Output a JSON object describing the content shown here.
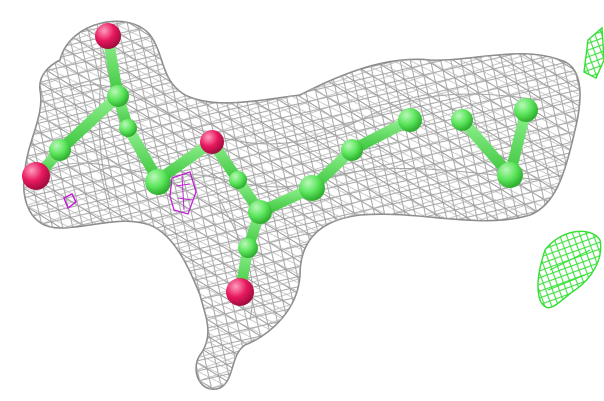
{
  "scene": {
    "subject": "ligand-electron-density-map",
    "palette": {
      "background": "#ffffff",
      "density_mesh": "#9a9a9a",
      "carbon": "#5ce65c",
      "carbon_highlight": "#b9f7b9",
      "oxygen": "#e8185f",
      "oxygen_highlight": "#ff9dbd",
      "difference_density_negative": "#c21fd6",
      "difference_density_positive": "#33e033"
    },
    "icons": {
      "mesh": "chicken-wire-mesh",
      "atom": "sphere",
      "bond": "stick"
    }
  }
}
